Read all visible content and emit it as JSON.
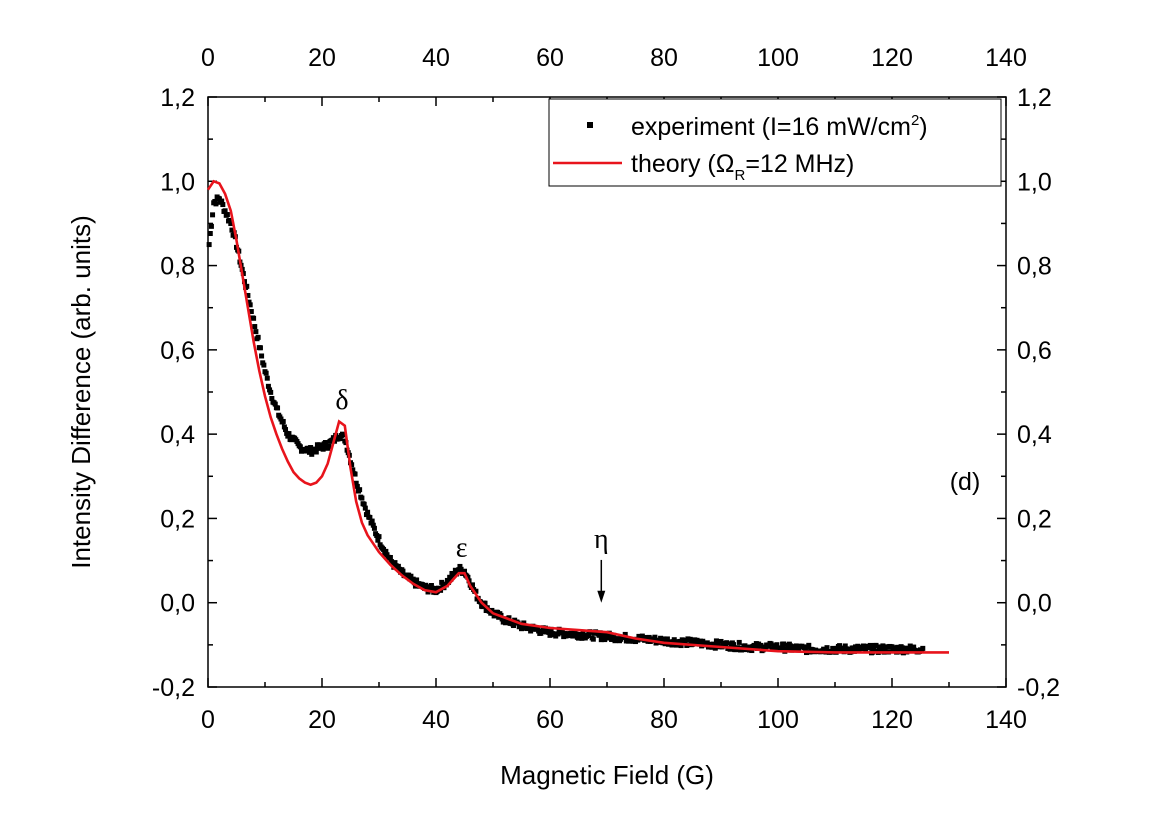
{
  "chart_data": {
    "type": "scatter",
    "panel_label": "(d)",
    "xlabel": "Magnetic Field (G)",
    "ylabel": "Intensity Difference (arb. units)",
    "xlim": [
      0,
      140
    ],
    "ylim": [
      -0.2,
      1.2
    ],
    "x_ticks": [
      "0",
      "20",
      "40",
      "60",
      "80",
      "100",
      "120",
      "140"
    ],
    "x_top_ticks": [
      "0",
      "20",
      "40",
      "60",
      "80",
      "100",
      "120",
      "140"
    ],
    "y_ticks": [
      "-0,2",
      "0,0",
      "0,2",
      "0,4",
      "0,6",
      "0,8",
      "1,0",
      "1,2"
    ],
    "y_right_ticks": [
      "-0,2",
      "0,0",
      "0,2",
      "0,4",
      "0,6",
      "0,8",
      "1,0",
      "1,2"
    ],
    "grid": false,
    "legend": {
      "position": "top-right",
      "experiment": {
        "pre": "experiment (I=16 mW/cm",
        "sup": "2",
        "post": ")"
      },
      "theory": {
        "pre": "theory (",
        "greek": "Ω",
        "sub": "R",
        "post": "=12 MHz)"
      }
    },
    "annotations": {
      "delta": {
        "text": "δ",
        "x": 23.5,
        "y": 0.46
      },
      "epsilon": {
        "text": "ε",
        "x": 44.5,
        "y": 0.11
      },
      "eta": {
        "text": "η",
        "x": 69,
        "y": 0.13,
        "arrow_to": [
          69,
          0.0
        ]
      }
    },
    "series": [
      {
        "name": "experiment (I=16 mW/cm2)",
        "style": "points",
        "color": "#000000",
        "x": [
          0.2,
          1,
          2,
          3,
          4,
          5,
          6,
          7,
          8,
          9,
          10,
          11,
          12,
          13,
          14,
          15,
          16,
          17,
          18,
          19,
          20,
          21,
          22,
          23,
          24,
          25,
          26,
          27,
          28,
          29,
          30,
          32,
          34,
          36,
          38,
          40,
          42,
          43,
          44,
          45,
          46,
          47,
          48,
          50,
          52,
          55,
          58,
          60,
          65,
          70,
          75,
          80,
          85,
          90,
          95,
          100,
          105,
          110,
          115,
          120,
          125.5
        ],
        "y": [
          0.85,
          0.95,
          0.96,
          0.93,
          0.9,
          0.85,
          0.79,
          0.73,
          0.67,
          0.61,
          0.55,
          0.5,
          0.46,
          0.43,
          0.4,
          0.385,
          0.37,
          0.365,
          0.36,
          0.365,
          0.37,
          0.375,
          0.385,
          0.4,
          0.39,
          0.34,
          0.29,
          0.25,
          0.21,
          0.18,
          0.15,
          0.1,
          0.07,
          0.05,
          0.035,
          0.03,
          0.05,
          0.065,
          0.08,
          0.075,
          0.05,
          0.02,
          0.0,
          -0.025,
          -0.04,
          -0.055,
          -0.065,
          -0.07,
          -0.075,
          -0.08,
          -0.085,
          -0.09,
          -0.095,
          -0.1,
          -0.105,
          -0.105,
          -0.11,
          -0.11,
          -0.11,
          -0.11,
          -0.11
        ]
      },
      {
        "name": "theory (ΩR=12 MHz)",
        "style": "line",
        "color": "#e8141c",
        "x": [
          0,
          1,
          2,
          3,
          4,
          5,
          6,
          7,
          8,
          9,
          10,
          11,
          12,
          13,
          14,
          15,
          16,
          17,
          18,
          19,
          20,
          21,
          22,
          23,
          24,
          25,
          26,
          27,
          28,
          30,
          32,
          34,
          36,
          38,
          40,
          42,
          43,
          44,
          45,
          46,
          48,
          50,
          55,
          60,
          65,
          70,
          75,
          80,
          90,
          100,
          110,
          120,
          130
        ],
        "y": [
          0.98,
          1.0,
          0.995,
          0.97,
          0.93,
          0.86,
          0.78,
          0.7,
          0.62,
          0.55,
          0.49,
          0.44,
          0.4,
          0.365,
          0.335,
          0.31,
          0.295,
          0.285,
          0.28,
          0.285,
          0.3,
          0.33,
          0.38,
          0.43,
          0.42,
          0.32,
          0.24,
          0.19,
          0.16,
          0.12,
          0.09,
          0.065,
          0.045,
          0.03,
          0.025,
          0.04,
          0.055,
          0.07,
          0.07,
          0.04,
          0.0,
          -0.025,
          -0.05,
          -0.06,
          -0.065,
          -0.07,
          -0.085,
          -0.095,
          -0.105,
          -0.115,
          -0.118,
          -0.118,
          -0.118
        ]
      }
    ]
  }
}
